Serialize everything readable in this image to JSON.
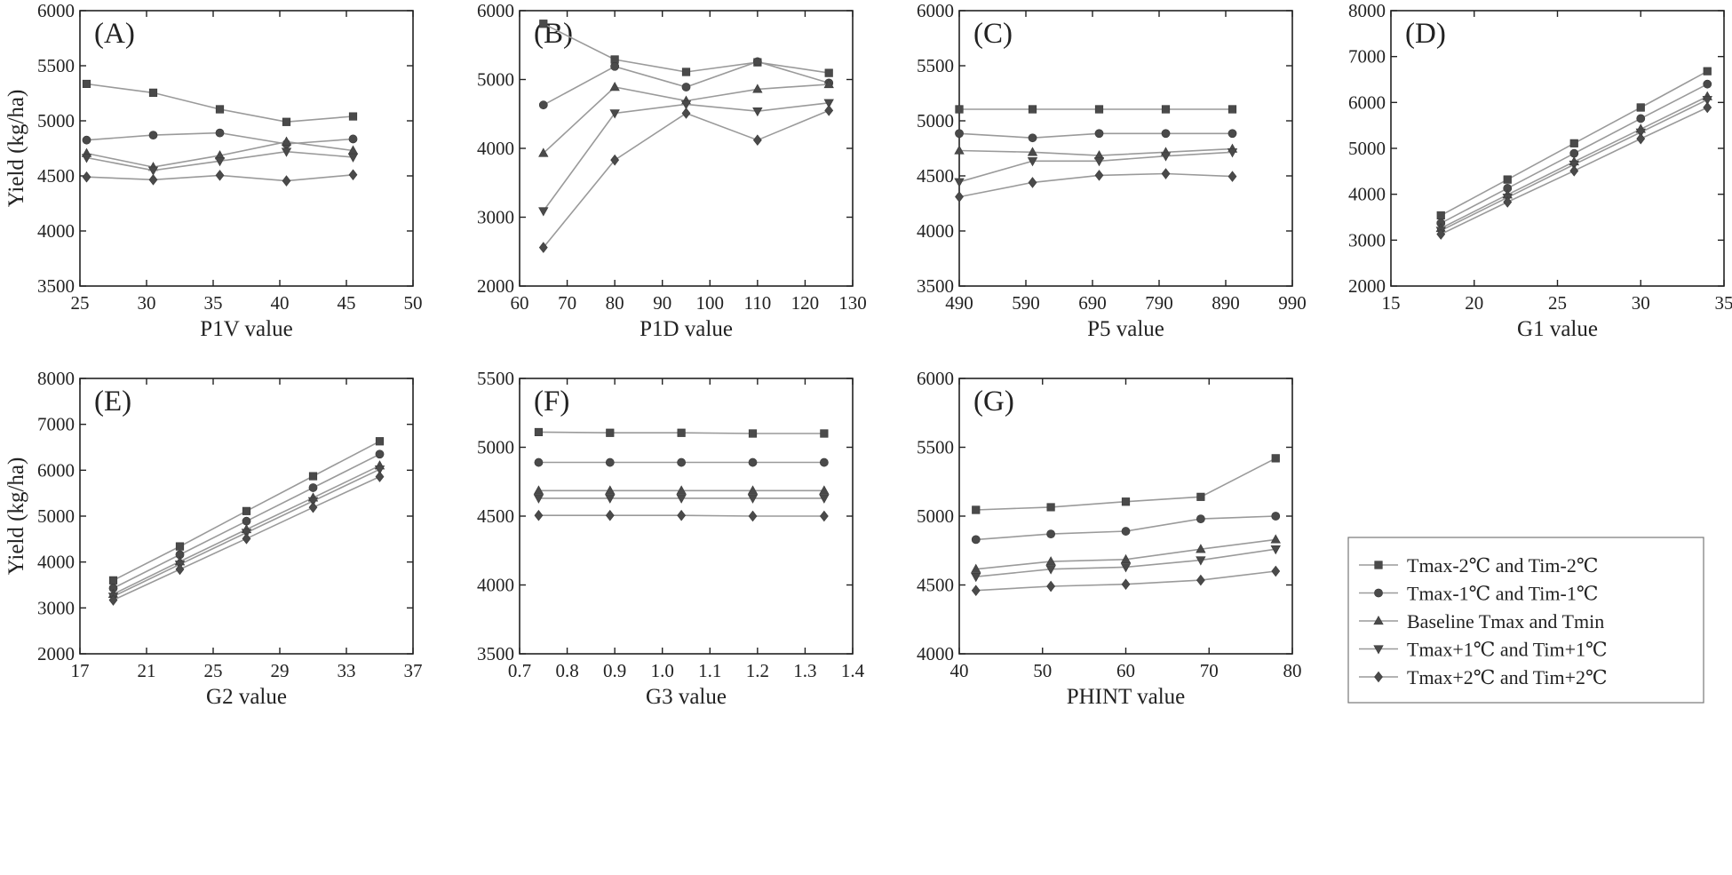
{
  "figure": {
    "series_names": [
      "Tmax-2℃ and Tim-2℃",
      "Tmax-1℃ and Tim-1℃",
      "Baseline Tmax and Tmin",
      "Tmax+1℃ and Tim+1℃",
      "Tmax+2℃ and Tim+2℃"
    ],
    "markers": [
      "square",
      "circle",
      "triangle-up",
      "triangle-down",
      "diamond"
    ],
    "line_color": "#9a9a9a",
    "marker_color": "#4a4a4a",
    "legend_position": "right of panel (G), bottom row"
  },
  "chart_data": [
    {
      "type": "line",
      "label": "(A)",
      "xlabel": "P1V value",
      "ylabel": "Yield (kg/ha)",
      "xlim": [
        25,
        50
      ],
      "xticks": [
        25,
        30,
        35,
        40,
        45,
        50
      ],
      "ylim": [
        3500,
        6000
      ],
      "yticks": [
        3500,
        4000,
        4500,
        5000,
        5500,
        6000
      ],
      "x": [
        25.5,
        30.5,
        35.5,
        40.5,
        45.5
      ],
      "series": [
        {
          "name": "Tmax-2℃ and Tim-2℃",
          "values": [
            5335,
            5255,
            5105,
            4990,
            5040
          ]
        },
        {
          "name": "Tmax-1℃ and Tim-1℃",
          "values": [
            4825,
            4870,
            4890,
            4790,
            4835
          ]
        },
        {
          "name": "Baseline Tmax and Tmin",
          "values": [
            4705,
            4580,
            4685,
            4810,
            4730
          ]
        },
        {
          "name": "Tmax+1℃ and Tim+1℃",
          "values": [
            4665,
            4550,
            4635,
            4720,
            4670
          ]
        },
        {
          "name": "Tmax+2℃ and Tim+2℃",
          "values": [
            4490,
            4465,
            4505,
            4455,
            4510
          ]
        }
      ]
    },
    {
      "type": "line",
      "label": "(B)",
      "xlabel": "P1D value",
      "ylabel": "",
      "xlim": [
        60,
        130
      ],
      "xticks": [
        60,
        70,
        80,
        90,
        100,
        110,
        120,
        130
      ],
      "ylim": [
        2000,
        6000
      ],
      "yticks": [
        2000,
        3000,
        4000,
        5000,
        6000
      ],
      "x": [
        65,
        80,
        95,
        110,
        125
      ],
      "series": [
        {
          "name": "Tmax-2℃ and Tim-2℃",
          "values": [
            5810,
            5290,
            5110,
            5250,
            5095
          ]
        },
        {
          "name": "Tmax-1℃ and Tim-1℃",
          "values": [
            4630,
            5190,
            4890,
            5260,
            4950
          ]
        },
        {
          "name": "Baseline Tmax and Tmin",
          "values": [
            3930,
            4890,
            4690,
            4860,
            4930
          ]
        },
        {
          "name": "Tmax+1℃ and Tim+1℃",
          "values": [
            3090,
            4510,
            4640,
            4540,
            4660
          ]
        },
        {
          "name": "Tmax+2℃ and Tim+2℃",
          "values": [
            2560,
            3830,
            4510,
            4120,
            4550
          ]
        }
      ]
    },
    {
      "type": "line",
      "label": "(C)",
      "xlabel": "P5 value",
      "ylabel": "",
      "xlim": [
        490,
        990
      ],
      "xticks": [
        490,
        590,
        690,
        790,
        890,
        990
      ],
      "ylim": [
        3500,
        6000
      ],
      "yticks": [
        3500,
        4000,
        4500,
        5000,
        5500,
        6000
      ],
      "x": [
        490,
        600,
        700,
        800,
        900
      ],
      "series": [
        {
          "name": "Tmax-2℃ and Tim-2℃",
          "values": [
            5105,
            5105,
            5105,
            5105,
            5105
          ]
        },
        {
          "name": "Tmax-1℃ and Tim-1℃",
          "values": [
            4885,
            4845,
            4885,
            4885,
            4885
          ]
        },
        {
          "name": "Baseline Tmax and Tmin",
          "values": [
            4730,
            4715,
            4685,
            4715,
            4745
          ]
        },
        {
          "name": "Tmax+1℃ and Tim+1℃",
          "values": [
            4445,
            4635,
            4635,
            4680,
            4715
          ]
        },
        {
          "name": "Tmax+2℃ and Tim+2℃",
          "values": [
            4310,
            4440,
            4505,
            4520,
            4495
          ]
        }
      ]
    },
    {
      "type": "line",
      "label": "(D)",
      "xlabel": "G1 value",
      "ylabel": "",
      "xlim": [
        15,
        35
      ],
      "xticks": [
        15,
        20,
        25,
        30,
        35
      ],
      "ylim": [
        2000,
        8000
      ],
      "yticks": [
        2000,
        3000,
        4000,
        5000,
        6000,
        7000,
        8000
      ],
      "x": [
        18,
        22,
        26,
        30,
        34
      ],
      "series": [
        {
          "name": "Tmax-2℃ and Tim-2℃",
          "values": [
            3540,
            4320,
            5110,
            5890,
            6680
          ]
        },
        {
          "name": "Tmax-1℃ and Tim-1℃",
          "values": [
            3370,
            4130,
            4890,
            5650,
            6400
          ]
        },
        {
          "name": "Baseline Tmax and Tmin",
          "values": [
            3260,
            3990,
            4710,
            5420,
            6130
          ]
        },
        {
          "name": "Tmax+1℃ and Tim+1℃",
          "values": [
            3210,
            3930,
            4650,
            5350,
            6060
          ]
        },
        {
          "name": "Tmax+2℃ and Tim+2℃",
          "values": [
            3130,
            3830,
            4510,
            5210,
            5890
          ]
        }
      ]
    },
    {
      "type": "line",
      "label": "(E)",
      "xlabel": "G2 value",
      "ylabel": "Yield (kg/ha)",
      "xlim": [
        17,
        37
      ],
      "xticks": [
        17,
        21,
        25,
        29,
        33,
        37
      ],
      "ylim": [
        2000,
        8000
      ],
      "yticks": [
        2000,
        3000,
        4000,
        5000,
        6000,
        7000,
        8000
      ],
      "x": [
        19,
        23,
        27,
        31,
        35
      ],
      "series": [
        {
          "name": "Tmax-2℃ and Tim-2℃",
          "values": [
            3600,
            4340,
            5110,
            5870,
            6630
          ]
        },
        {
          "name": "Tmax-1℃ and Tim-1℃",
          "values": [
            3430,
            4160,
            4890,
            5620,
            6350
          ]
        },
        {
          "name": "Baseline Tmax and Tmin",
          "values": [
            3300,
            4010,
            4710,
            5400,
            6100
          ]
        },
        {
          "name": "Tmax+1℃ and Tim+1℃",
          "values": [
            3250,
            3950,
            4640,
            5330,
            6020
          ]
        },
        {
          "name": "Tmax+2℃ and Tim+2℃",
          "values": [
            3170,
            3840,
            4510,
            5190,
            5860
          ]
        }
      ]
    },
    {
      "type": "line",
      "label": "(F)",
      "xlabel": "G3 value",
      "ylabel": "",
      "xlim": [
        0.7,
        1.4
      ],
      "xticks": [
        0.7,
        0.8,
        0.9,
        1.0,
        1.1,
        1.2,
        1.3,
        1.4
      ],
      "xtick_labels": [
        "0.7",
        "0.8",
        "0.9",
        "1.0",
        "1.1",
        "1.2",
        "1.3",
        "1.4"
      ],
      "ylim": [
        3500,
        5500
      ],
      "yticks": [
        3500,
        4000,
        4500,
        5000,
        5500
      ],
      "x": [
        0.74,
        0.89,
        1.04,
        1.19,
        1.34
      ],
      "series": [
        {
          "name": "Tmax-2℃ and Tim-2℃",
          "values": [
            5110,
            5105,
            5105,
            5100,
            5100
          ]
        },
        {
          "name": "Tmax-1℃ and Tim-1℃",
          "values": [
            4890,
            4890,
            4890,
            4890,
            4890
          ]
        },
        {
          "name": "Baseline Tmax and Tmin",
          "values": [
            4685,
            4685,
            4685,
            4685,
            4685
          ]
        },
        {
          "name": "Tmax+1℃ and Tim+1℃",
          "values": [
            4630,
            4630,
            4630,
            4630,
            4630
          ]
        },
        {
          "name": "Tmax+2℃ and Tim+2℃",
          "values": [
            4505,
            4505,
            4505,
            4500,
            4500
          ]
        }
      ]
    },
    {
      "type": "line",
      "label": "(G)",
      "xlabel": "PHINT value",
      "ylabel": "",
      "xlim": [
        40,
        80
      ],
      "xticks": [
        40,
        50,
        60,
        70,
        80
      ],
      "ylim": [
        4000,
        6000
      ],
      "yticks": [
        4000,
        4500,
        5000,
        5500,
        6000
      ],
      "x": [
        42,
        51,
        60,
        69,
        78
      ],
      "series": [
        {
          "name": "Tmax-2℃ and Tim-2℃",
          "values": [
            5045,
            5065,
            5105,
            5140,
            5420
          ]
        },
        {
          "name": "Tmax-1℃ and Tim-1℃",
          "values": [
            4830,
            4870,
            4890,
            4980,
            5000
          ]
        },
        {
          "name": "Baseline Tmax and Tmin",
          "values": [
            4615,
            4670,
            4685,
            4760,
            4830
          ]
        },
        {
          "name": "Tmax+1℃ and Tim+1℃",
          "values": [
            4560,
            4615,
            4630,
            4680,
            4760
          ]
        },
        {
          "name": "Tmax+2℃ and Tim+2℃",
          "values": [
            4460,
            4490,
            4505,
            4535,
            4600
          ]
        }
      ]
    }
  ]
}
